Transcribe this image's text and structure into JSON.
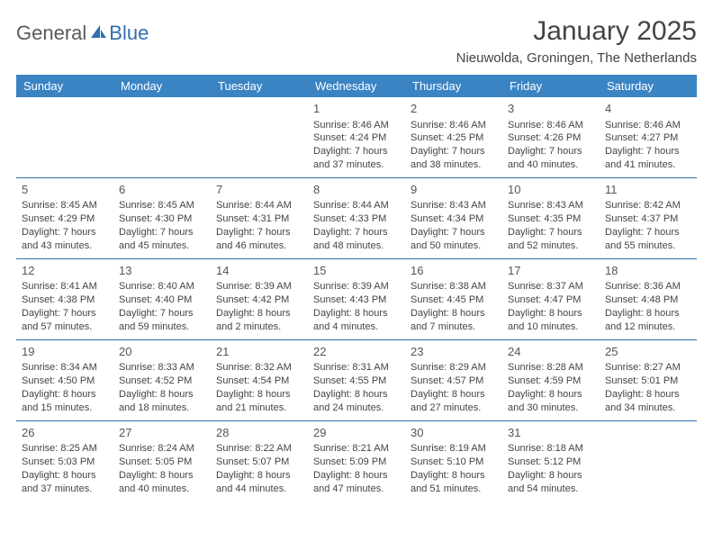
{
  "logo": {
    "text1": "General",
    "text2": "Blue"
  },
  "title": "January 2025",
  "location": "Nieuwolda, Groningen, The Netherlands",
  "colors": {
    "header_bg": "#3b84c4",
    "header_text": "#ffffff",
    "rule": "#2f6fb0",
    "body_text": "#444444",
    "logo_gray": "#5a5a5a",
    "logo_blue": "#2f6fb0",
    "background": "#ffffff"
  },
  "day_headers": [
    "Sunday",
    "Monday",
    "Tuesday",
    "Wednesday",
    "Thursday",
    "Friday",
    "Saturday"
  ],
  "weeks": [
    [
      null,
      null,
      null,
      {
        "n": "1",
        "sr": "8:46 AM",
        "ss": "4:24 PM",
        "dl": "7 hours and 37 minutes."
      },
      {
        "n": "2",
        "sr": "8:46 AM",
        "ss": "4:25 PM",
        "dl": "7 hours and 38 minutes."
      },
      {
        "n": "3",
        "sr": "8:46 AM",
        "ss": "4:26 PM",
        "dl": "7 hours and 40 minutes."
      },
      {
        "n": "4",
        "sr": "8:46 AM",
        "ss": "4:27 PM",
        "dl": "7 hours and 41 minutes."
      }
    ],
    [
      {
        "n": "5",
        "sr": "8:45 AM",
        "ss": "4:29 PM",
        "dl": "7 hours and 43 minutes."
      },
      {
        "n": "6",
        "sr": "8:45 AM",
        "ss": "4:30 PM",
        "dl": "7 hours and 45 minutes."
      },
      {
        "n": "7",
        "sr": "8:44 AM",
        "ss": "4:31 PM",
        "dl": "7 hours and 46 minutes."
      },
      {
        "n": "8",
        "sr": "8:44 AM",
        "ss": "4:33 PM",
        "dl": "7 hours and 48 minutes."
      },
      {
        "n": "9",
        "sr": "8:43 AM",
        "ss": "4:34 PM",
        "dl": "7 hours and 50 minutes."
      },
      {
        "n": "10",
        "sr": "8:43 AM",
        "ss": "4:35 PM",
        "dl": "7 hours and 52 minutes."
      },
      {
        "n": "11",
        "sr": "8:42 AM",
        "ss": "4:37 PM",
        "dl": "7 hours and 55 minutes."
      }
    ],
    [
      {
        "n": "12",
        "sr": "8:41 AM",
        "ss": "4:38 PM",
        "dl": "7 hours and 57 minutes."
      },
      {
        "n": "13",
        "sr": "8:40 AM",
        "ss": "4:40 PM",
        "dl": "7 hours and 59 minutes."
      },
      {
        "n": "14",
        "sr": "8:39 AM",
        "ss": "4:42 PM",
        "dl": "8 hours and 2 minutes."
      },
      {
        "n": "15",
        "sr": "8:39 AM",
        "ss": "4:43 PM",
        "dl": "8 hours and 4 minutes."
      },
      {
        "n": "16",
        "sr": "8:38 AM",
        "ss": "4:45 PM",
        "dl": "8 hours and 7 minutes."
      },
      {
        "n": "17",
        "sr": "8:37 AM",
        "ss": "4:47 PM",
        "dl": "8 hours and 10 minutes."
      },
      {
        "n": "18",
        "sr": "8:36 AM",
        "ss": "4:48 PM",
        "dl": "8 hours and 12 minutes."
      }
    ],
    [
      {
        "n": "19",
        "sr": "8:34 AM",
        "ss": "4:50 PM",
        "dl": "8 hours and 15 minutes."
      },
      {
        "n": "20",
        "sr": "8:33 AM",
        "ss": "4:52 PM",
        "dl": "8 hours and 18 minutes."
      },
      {
        "n": "21",
        "sr": "8:32 AM",
        "ss": "4:54 PM",
        "dl": "8 hours and 21 minutes."
      },
      {
        "n": "22",
        "sr": "8:31 AM",
        "ss": "4:55 PM",
        "dl": "8 hours and 24 minutes."
      },
      {
        "n": "23",
        "sr": "8:29 AM",
        "ss": "4:57 PM",
        "dl": "8 hours and 27 minutes."
      },
      {
        "n": "24",
        "sr": "8:28 AM",
        "ss": "4:59 PM",
        "dl": "8 hours and 30 minutes."
      },
      {
        "n": "25",
        "sr": "8:27 AM",
        "ss": "5:01 PM",
        "dl": "8 hours and 34 minutes."
      }
    ],
    [
      {
        "n": "26",
        "sr": "8:25 AM",
        "ss": "5:03 PM",
        "dl": "8 hours and 37 minutes."
      },
      {
        "n": "27",
        "sr": "8:24 AM",
        "ss": "5:05 PM",
        "dl": "8 hours and 40 minutes."
      },
      {
        "n": "28",
        "sr": "8:22 AM",
        "ss": "5:07 PM",
        "dl": "8 hours and 44 minutes."
      },
      {
        "n": "29",
        "sr": "8:21 AM",
        "ss": "5:09 PM",
        "dl": "8 hours and 47 minutes."
      },
      {
        "n": "30",
        "sr": "8:19 AM",
        "ss": "5:10 PM",
        "dl": "8 hours and 51 minutes."
      },
      {
        "n": "31",
        "sr": "8:18 AM",
        "ss": "5:12 PM",
        "dl": "8 hours and 54 minutes."
      },
      null
    ]
  ]
}
